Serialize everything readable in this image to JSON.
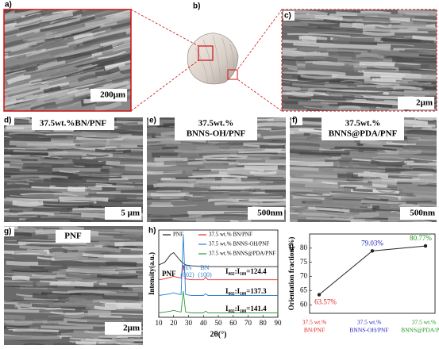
{
  "panels": {
    "a": {
      "label": "a)",
      "scale": "200μm"
    },
    "b": {
      "label": "b)"
    },
    "c": {
      "label": "c)",
      "scale": "2μm"
    },
    "d": {
      "label": "d)",
      "title": [
        "37.5wt.%BN/PNF"
      ],
      "scale": "5 μm"
    },
    "e": {
      "label": "e)",
      "title": [
        "37.5wt.%",
        "BNNS-OH/PNF"
      ],
      "scale": "500nm"
    },
    "f": {
      "label": "f)",
      "title": [
        "37.5wt.%",
        "BNNS@PDA/PNF"
      ],
      "scale": "500nm"
    },
    "g": {
      "label": "g)",
      "title": [
        "PNF"
      ],
      "scale": "2μm"
    },
    "h": {
      "label": "h)"
    },
    "i": {
      "label": "i)"
    }
  },
  "chart_data": [
    {
      "type": "line",
      "xlabel": "2θ(°)",
      "ylabel": "Intensity(a.u.)",
      "xlim": [
        10,
        90
      ],
      "xticks": [
        10,
        20,
        30,
        40,
        50,
        60,
        70,
        80,
        90
      ],
      "ylim": [
        0,
        100
      ],
      "x": [
        10,
        14,
        18,
        20,
        22,
        25,
        26.5,
        28,
        32,
        40,
        41.5,
        43,
        50,
        60,
        70,
        80,
        90
      ],
      "series": [
        {
          "name": "PNF",
          "color": "#222222",
          "values": [
            60,
            63,
            72,
            74,
            70,
            64,
            62,
            60,
            59,
            58,
            58,
            58,
            58,
            58,
            58,
            58,
            58
          ]
        },
        {
          "name": "37.5 wt.% BN/PNF",
          "color": "#e03030",
          "values": [
            43,
            44,
            46,
            47,
            46,
            45,
            60,
            44,
            43,
            43,
            46,
            43,
            43,
            43,
            43,
            43,
            43
          ]
        },
        {
          "name": "37.5 wt.% BNNS-OH/PNF",
          "color": "#2a7fd0",
          "values": [
            25,
            26,
            27,
            28,
            27,
            26,
            95,
            26,
            25,
            25,
            27,
            25,
            25,
            25,
            25,
            25,
            25
          ]
        },
        {
          "name": "37.5 wt.% BNNS@PDA/PNF",
          "color": "#2e9a3a",
          "values": [
            5,
            6,
            7,
            8,
            7,
            6,
            30,
            6,
            5,
            5,
            7,
            5,
            5,
            5,
            5,
            5,
            5
          ]
        }
      ],
      "annotations": [
        "PNF",
        "BN",
        "(002)",
        "BN",
        "(100)",
        "I₀₀₂:I₁₀₀=124.4",
        "I₀₀₂:I₁₀₀=137.3",
        "I₀₀₂:I₁₀₀=141.4"
      ]
    },
    {
      "type": "line",
      "ylabel": "Orientation fraction(%)",
      "categories": [
        [
          "37.5 wt.%",
          "BN/PNF"
        ],
        [
          "37.5 wt.%",
          "BNNS-OH/PNF"
        ],
        [
          "37.5 wt.%",
          "BNNS@PDA/PNF"
        ]
      ],
      "values": [
        63.57,
        79.03,
        80.77
      ],
      "value_labels": [
        "63.57%",
        "79.03%",
        "80.77%"
      ],
      "color": "#222222",
      "label_colors": [
        "#e02020",
        "#2020c0",
        "#1a9a1a"
      ],
      "ylim": [
        57,
        85
      ],
      "yticks": [
        60,
        65,
        70,
        75,
        80
      ]
    }
  ]
}
